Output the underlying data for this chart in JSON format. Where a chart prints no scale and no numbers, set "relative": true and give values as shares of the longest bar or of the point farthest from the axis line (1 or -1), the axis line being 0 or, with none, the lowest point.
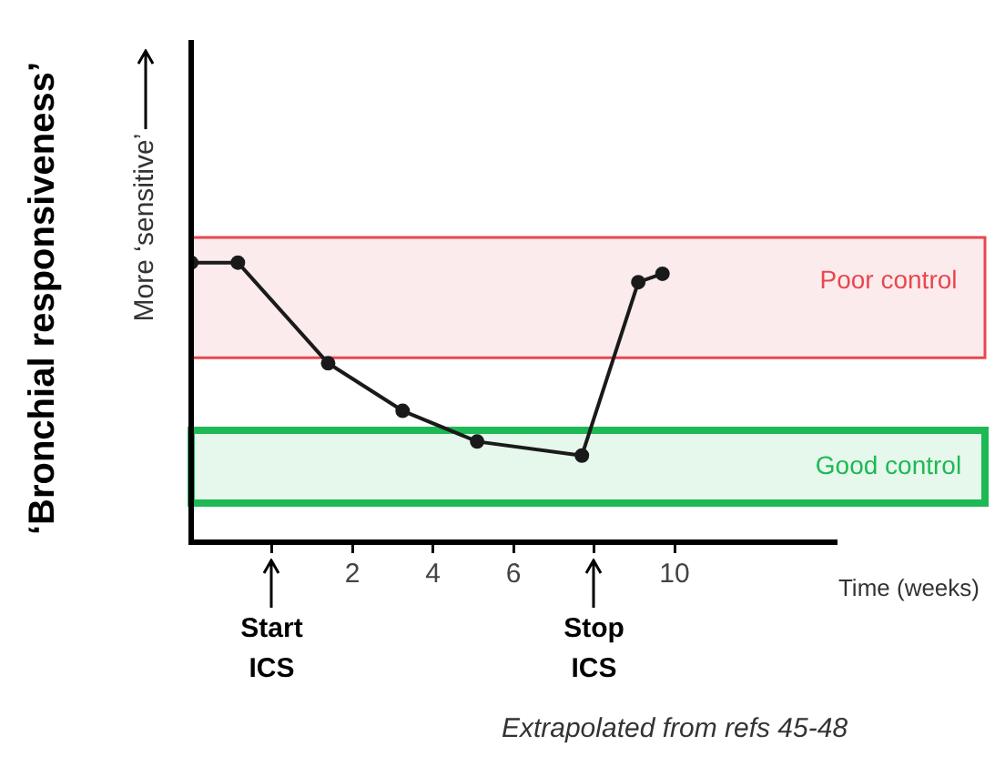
{
  "chart_data": {
    "type": "line",
    "relative": true,
    "ylabel": "‘Bronchial responsiveness’",
    "xlabel": "Time (weeks)",
    "xlim": [
      -2,
      14
    ],
    "xticks": [
      {
        "value": 0,
        "label": null
      },
      2,
      4,
      6,
      {
        "value": 8,
        "label": null
      },
      10
    ],
    "series": [
      {
        "color": "#1a1a1a",
        "x": [
          -2,
          -0.84,
          1.4,
          3.25,
          5.1,
          7.7,
          9.1,
          9.7
        ],
        "values": [
          1,
          1,
          0.64,
          0.47,
          0.36,
          0.31,
          0.93,
          0.96
        ]
      }
    ],
    "marker": "circle",
    "line_style": "solid",
    "bands": [
      {
        "axis": "y",
        "from": 0.66,
        "to": 1.09,
        "label": "Poor control",
        "color": "#e8474f"
      },
      {
        "axis": "y",
        "from": 0.14,
        "to": 0.4,
        "label": "Good control",
        "color": "#1db954"
      }
    ],
    "annotations": [
      "Start ICS",
      "Stop ICS",
      "More ‘sensitive’",
      "Extrapolated from refs 45-48"
    ]
  }
}
